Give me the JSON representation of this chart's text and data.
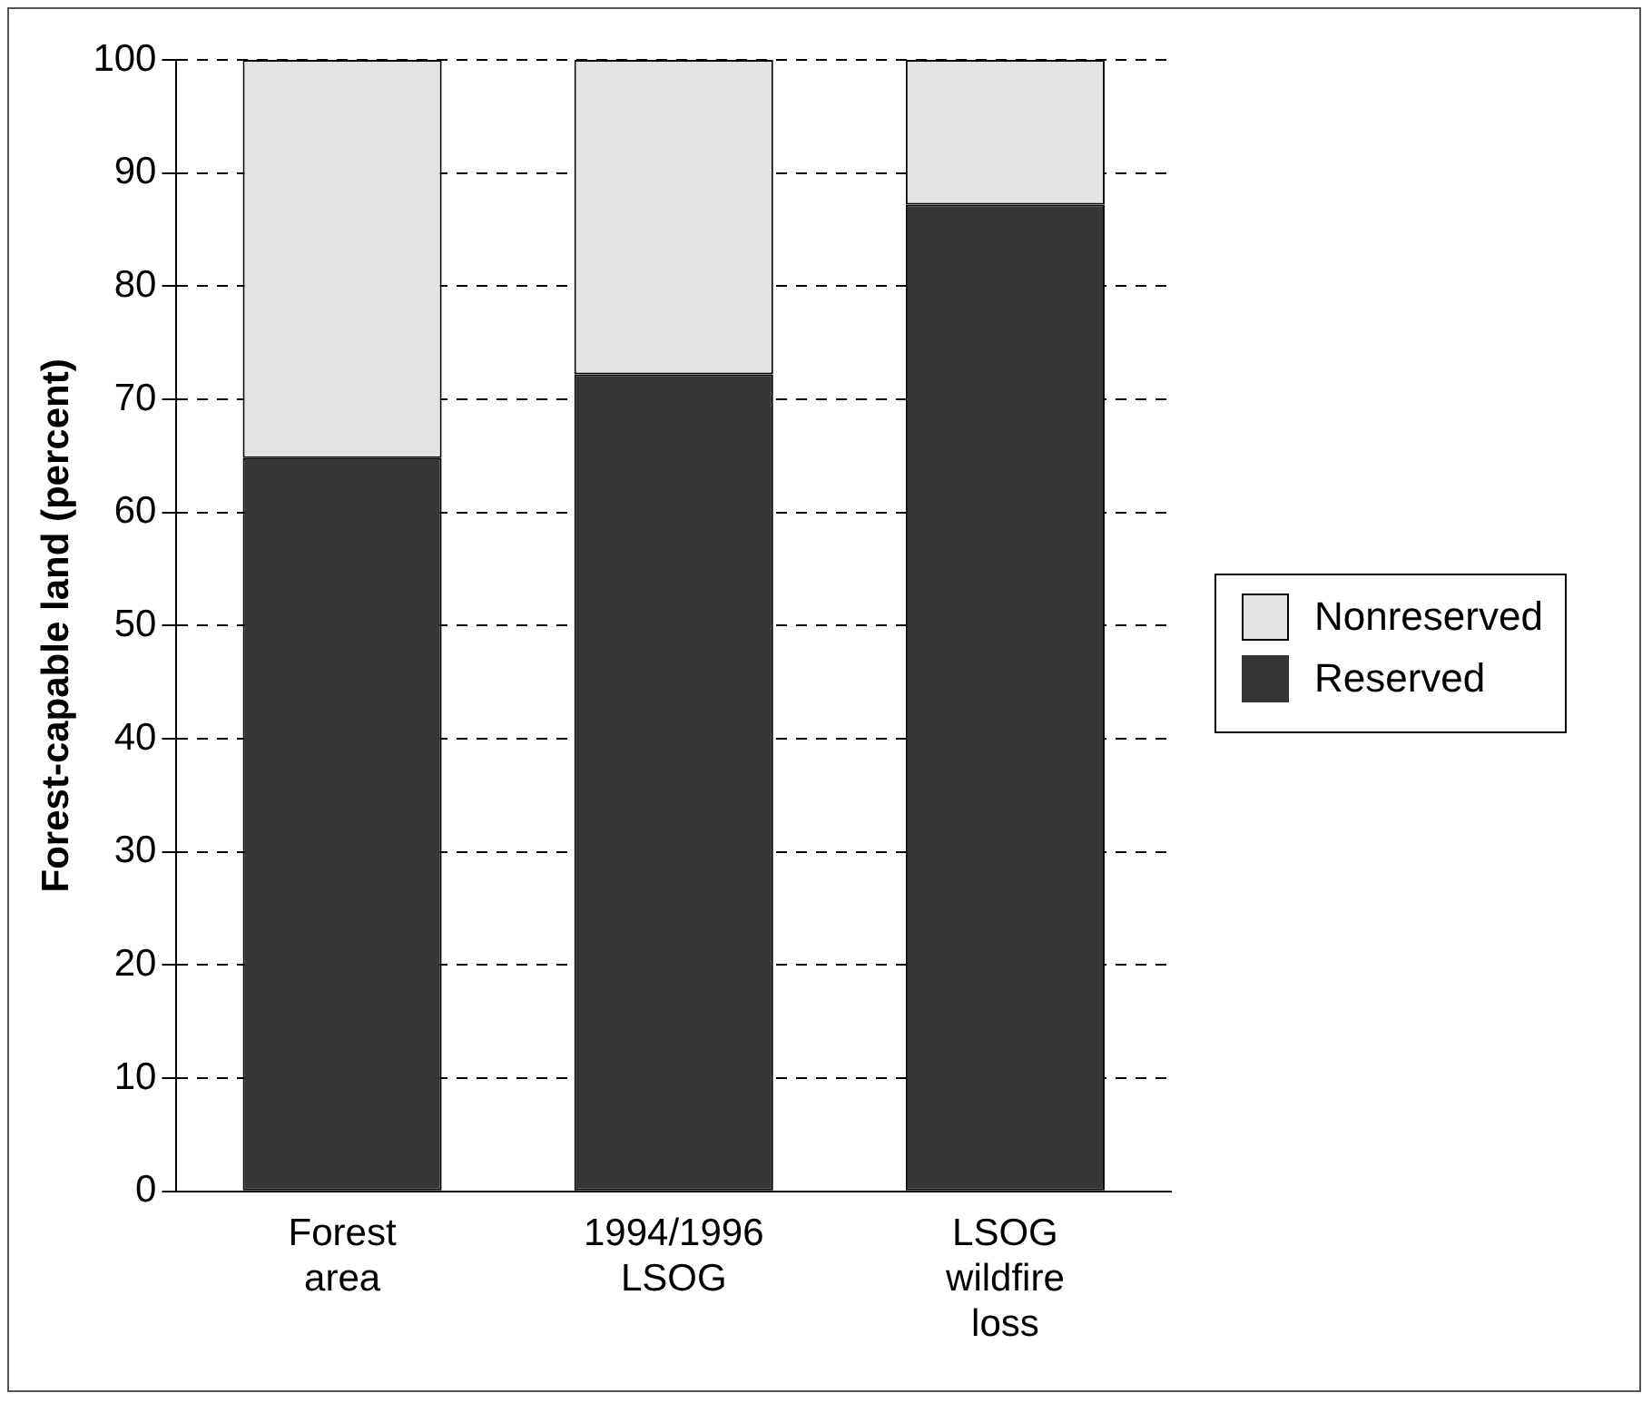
{
  "chart_data": {
    "type": "bar",
    "ylabel": "Forest-capable land (percent)",
    "categories": [
      "Forest area",
      "1994/1996 LSOG",
      "LSOG wildfire loss"
    ],
    "series": [
      {
        "name": "Reserved",
        "color": "#363636",
        "values": [
          64.8,
          72.2,
          87.2
        ]
      },
      {
        "name": "Nonreserved",
        "color": "#e3e3e3",
        "values": [
          35.2,
          27.8,
          12.8
        ]
      }
    ],
    "stacked": true,
    "ylim": [
      0,
      100
    ],
    "yticks": [
      0,
      10,
      20,
      30,
      40,
      50,
      60,
      70,
      80,
      90,
      100
    ],
    "grid": "y",
    "legend": "right"
  }
}
